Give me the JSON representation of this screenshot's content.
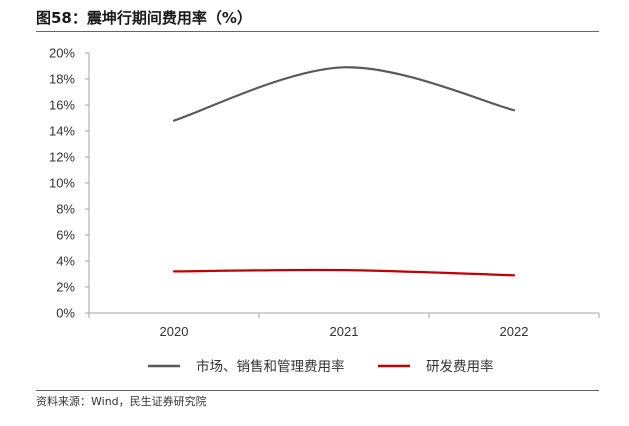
{
  "figure": {
    "title": "图58：震坤行期间费用率（%）",
    "source": "资料来源：Wind，民生证券研究院"
  },
  "chart_data": {
    "type": "line",
    "title": "",
    "xlabel": "",
    "ylabel": "",
    "x": [
      "2020",
      "2021",
      "2022"
    ],
    "ylim": [
      0,
      20
    ],
    "yticks": [
      0,
      2,
      4,
      6,
      8,
      10,
      12,
      14,
      16,
      18,
      20
    ],
    "y_tick_format": "percent",
    "smooth": true,
    "grid": false,
    "legend_position": "bottom",
    "series": [
      {
        "name": "市场、销售和管理费用率",
        "values": [
          14.8,
          18.9,
          15.6
        ],
        "color": "#595959"
      },
      {
        "name": "研发费用率",
        "values": [
          3.2,
          3.3,
          2.9
        ],
        "color": "#c00000"
      }
    ]
  }
}
